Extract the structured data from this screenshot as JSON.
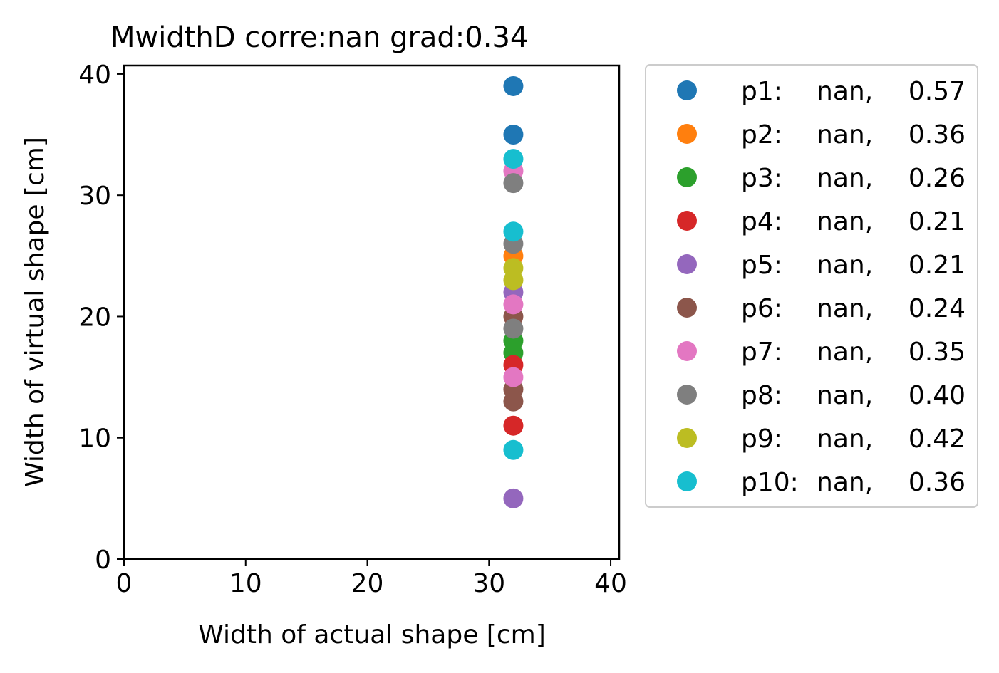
{
  "chart_data": {
    "type": "scatter",
    "title": "MwidthD corre:nan grad:0.34",
    "xlabel": "Width of actual shape [cm]",
    "ylabel": "Width of virtual shape [cm]",
    "xlim": [
      0,
      40.7
    ],
    "ylim": [
      0,
      40.7
    ],
    "xticks": [
      0,
      10,
      20,
      30,
      40
    ],
    "yticks": [
      0,
      10,
      20,
      30,
      40
    ],
    "xtick_labels": [
      "0",
      "10",
      "20",
      "30",
      "40"
    ],
    "ytick_labels": [
      "0",
      "10",
      "20",
      "30",
      "40"
    ],
    "grid": false,
    "legend_position": "outside-right",
    "series": [
      {
        "name": "p1:",
        "stat_a": "nan,",
        "stat_b": "0.57",
        "color": "#1f77b4",
        "points": [
          [
            32,
            39
          ],
          [
            32,
            35
          ]
        ]
      },
      {
        "name": "p2:",
        "stat_a": "nan,",
        "stat_b": "0.36",
        "color": "#ff7f0e",
        "points": [
          [
            32,
            25
          ]
        ]
      },
      {
        "name": "p3:",
        "stat_a": "nan,",
        "stat_b": "0.26",
        "color": "#2ca02c",
        "points": [
          [
            32,
            18
          ],
          [
            32,
            17
          ]
        ]
      },
      {
        "name": "p4:",
        "stat_a": "nan,",
        "stat_b": "0.21",
        "color": "#d62728",
        "points": [
          [
            32,
            16
          ],
          [
            32,
            11
          ]
        ]
      },
      {
        "name": "p5:",
        "stat_a": "nan,",
        "stat_b": "0.21",
        "color": "#9467bd",
        "points": [
          [
            32,
            22
          ],
          [
            32,
            5
          ]
        ]
      },
      {
        "name": "p6:",
        "stat_a": "nan,",
        "stat_b": "0.24",
        "color": "#8c564b",
        "points": [
          [
            32,
            20
          ],
          [
            32,
            14
          ],
          [
            32,
            13
          ]
        ]
      },
      {
        "name": "p7:",
        "stat_a": "nan,",
        "stat_b": "0.35",
        "color": "#e377c2",
        "points": [
          [
            32,
            32
          ],
          [
            32,
            21
          ],
          [
            32,
            15
          ]
        ]
      },
      {
        "name": "p8:",
        "stat_a": "nan,",
        "stat_b": "0.40",
        "color": "#7f7f7f",
        "points": [
          [
            32,
            31
          ],
          [
            32,
            26
          ],
          [
            32,
            19
          ]
        ]
      },
      {
        "name": "p9:",
        "stat_a": "nan,",
        "stat_b": "0.42",
        "color": "#bcbd22",
        "points": [
          [
            32,
            24
          ],
          [
            32,
            23
          ]
        ]
      },
      {
        "name": "p10:",
        "stat_a": "nan,",
        "stat_b": "0.36",
        "color": "#17becf",
        "points": [
          [
            32,
            33
          ],
          [
            32,
            27
          ],
          [
            32,
            9
          ]
        ]
      }
    ]
  }
}
